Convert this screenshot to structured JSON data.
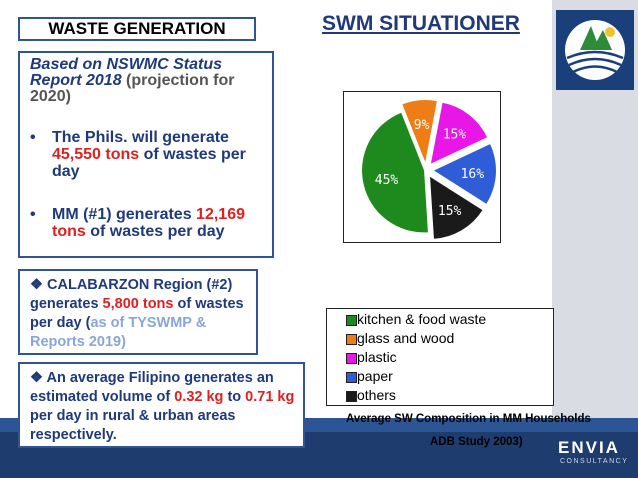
{
  "header": "WASTE GENERATION",
  "title": "SWM SITUATIONER",
  "panel1": {
    "intro_italic": "Based on NSWMC Status Report 2018",
    "intro_rest": "(projection for 2020)",
    "b1_pre": "The Phils.  will generate",
    "b1_value": "45,550 tons",
    "b1_post": "of wastes per day",
    "b2_pre": "MM (#1) generates",
    "b2_value": "12,169 tons",
    "b2_post": "of wastes per day"
  },
  "panel2": {
    "pre": "CALABARZON Region (#2) generates",
    "value": "5,800 tons",
    "mid": "of wastes per day",
    "source_open": "(",
    "source_light": "as of",
    "source_rest": "TYSWMP & Reports 2019)"
  },
  "panel3": {
    "pre": "An average Filipino generates an estimated volume of",
    "v1": "0.32 kg",
    "to": "to",
    "v2": "0.71 kg",
    "post": "per day in rural & urban areas respectively."
  },
  "chart_data": {
    "type": "pie",
    "slices": [
      {
        "name": "kitchen & food waste",
        "value": 45,
        "label": "45%",
        "color": "#1e8a1e"
      },
      {
        "name": "glass and wood",
        "value": 9,
        "label": "9%",
        "color": "#f07c16"
      },
      {
        "name": "plastic",
        "value": 15,
        "label": "15%",
        "color": "#e817e8"
      },
      {
        "name": "paper",
        "value": 16,
        "label": "16%",
        "color": "#2f5dd8"
      },
      {
        "name": "others",
        "value": 15,
        "label": "15%",
        "color": "#1a1a1a"
      }
    ],
    "legend": [
      "kitchen & food waste",
      "glass and wood",
      "plastic",
      "paper",
      "others"
    ]
  },
  "caption1": "Average SW Composition in  MM Households",
  "caption2": "ADB Study 2003)",
  "brand": "ENVIA",
  "brand_sub": "CONSULTANCY"
}
